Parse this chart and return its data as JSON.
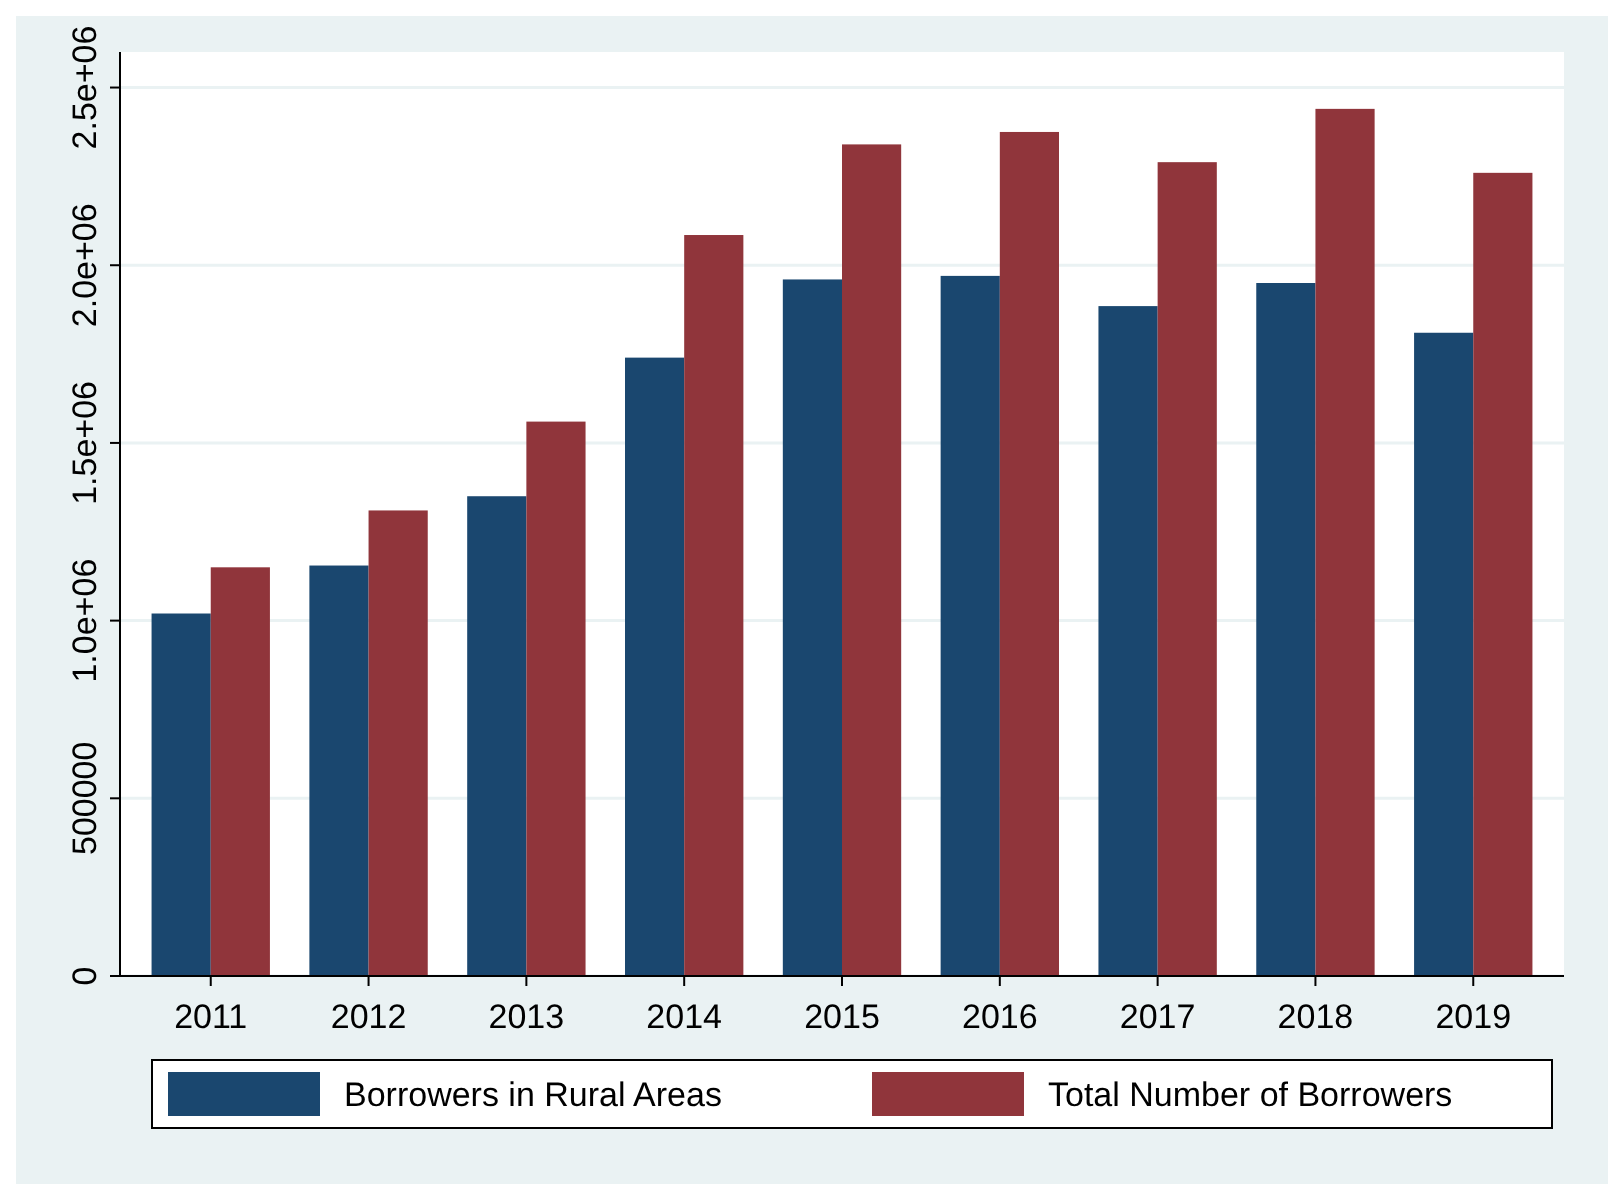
{
  "chart_data": {
    "type": "bar",
    "categories": [
      "2011",
      "2012",
      "2013",
      "2014",
      "2015",
      "2016",
      "2017",
      "2018",
      "2019"
    ],
    "series": [
      {
        "name": "Borrowers in Rural Areas",
        "color": "#1a476f",
        "values": [
          1020000,
          1155000,
          1350000,
          1740000,
          1960000,
          1970000,
          1885000,
          1950000,
          1810000
        ]
      },
      {
        "name": "Total Number of Borrowers",
        "color": "#90353b",
        "values": [
          1150000,
          1310000,
          1560000,
          2085000,
          2340000,
          2375000,
          2290000,
          2440000,
          2260000
        ]
      }
    ],
    "ylim": [
      0,
      2600000
    ],
    "yticks": [
      0,
      500000,
      {
        "value": 1000000,
        "label": "1.0e+06"
      },
      {
        "value": 1500000,
        "label": "1.5e+06"
      },
      {
        "value": 2000000,
        "label": "2.0e+06"
      },
      {
        "value": 2500000,
        "label": "2.5e+06"
      }
    ],
    "grid": "y",
    "legend": "bottom"
  }
}
